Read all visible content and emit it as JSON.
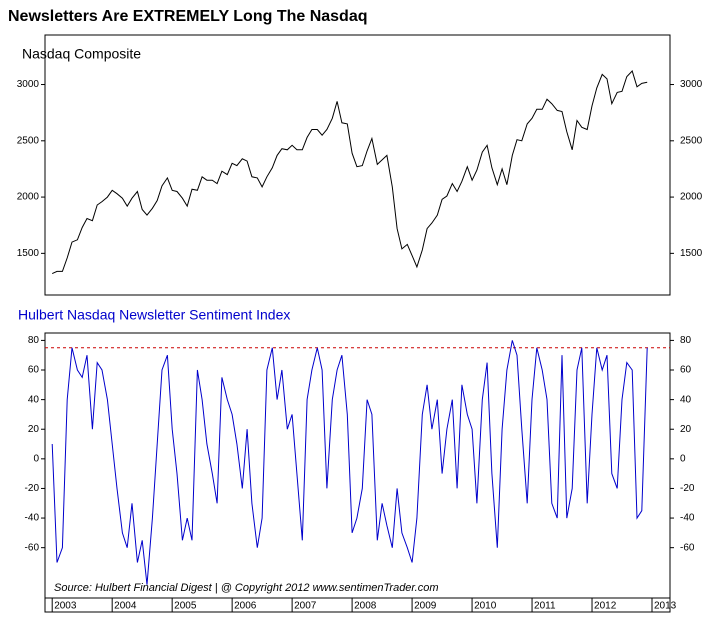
{
  "chart_data": [
    {
      "type": "line",
      "title": "Newsletters Are EXTREMELY Long The Nasdaq",
      "subtitle": "Nasdaq Composite",
      "x": [
        2003.0,
        2003.08,
        2003.17,
        2003.25,
        2003.33,
        2003.42,
        2003.5,
        2003.58,
        2003.67,
        2003.75,
        2003.83,
        2003.92,
        2004.0,
        2004.08,
        2004.17,
        2004.25,
        2004.33,
        2004.42,
        2004.5,
        2004.58,
        2004.67,
        2004.75,
        2004.83,
        2004.92,
        2005.0,
        2005.08,
        2005.17,
        2005.25,
        2005.33,
        2005.42,
        2005.5,
        2005.58,
        2005.67,
        2005.75,
        2005.83,
        2005.92,
        2006.0,
        2006.08,
        2006.17,
        2006.25,
        2006.33,
        2006.42,
        2006.5,
        2006.58,
        2006.67,
        2006.75,
        2006.83,
        2006.92,
        2007.0,
        2007.08,
        2007.17,
        2007.25,
        2007.33,
        2007.42,
        2007.5,
        2007.58,
        2007.67,
        2007.75,
        2007.83,
        2007.92,
        2008.0,
        2008.08,
        2008.17,
        2008.25,
        2008.33,
        2008.42,
        2008.5,
        2008.58,
        2008.67,
        2008.75,
        2008.83,
        2008.92,
        2009.0,
        2009.08,
        2009.17,
        2009.25,
        2009.33,
        2009.42,
        2009.5,
        2009.58,
        2009.67,
        2009.75,
        2009.83,
        2009.92,
        2010.0,
        2010.08,
        2010.17,
        2010.25,
        2010.33,
        2010.42,
        2010.5,
        2010.58,
        2010.67,
        2010.75,
        2010.83,
        2010.92,
        2011.0,
        2011.08,
        2011.17,
        2011.25,
        2011.33,
        2011.42,
        2011.5,
        2011.58,
        2011.67,
        2011.75,
        2011.83,
        2011.92,
        2012.0,
        2012.08,
        2012.17,
        2012.25,
        2012.33,
        2012.42,
        2012.5,
        2012.58,
        2012.67,
        2012.75,
        2012.83,
        2012.92
      ],
      "series": [
        {
          "name": "Nasdaq Composite",
          "color": "#000000",
          "values": [
            1320,
            1340,
            1340,
            1460,
            1600,
            1620,
            1730,
            1810,
            1790,
            1930,
            1960,
            2000,
            2060,
            2030,
            1990,
            1920,
            1990,
            2050,
            1890,
            1840,
            1900,
            1970,
            2100,
            2170,
            2060,
            2050,
            1990,
            1920,
            2070,
            2060,
            2180,
            2150,
            2150,
            2120,
            2230,
            2200,
            2300,
            2280,
            2340,
            2320,
            2180,
            2170,
            2090,
            2180,
            2260,
            2370,
            2430,
            2420,
            2460,
            2420,
            2420,
            2530,
            2600,
            2600,
            2550,
            2600,
            2700,
            2850,
            2660,
            2650,
            2390,
            2270,
            2280,
            2410,
            2520,
            2290,
            2330,
            2370,
            2090,
            1720,
            1540,
            1580,
            1480,
            1380,
            1530,
            1720,
            1770,
            1840,
            1980,
            2010,
            2120,
            2050,
            2140,
            2270,
            2150,
            2240,
            2400,
            2460,
            2260,
            2110,
            2250,
            2110,
            2370,
            2510,
            2500,
            2650,
            2700,
            2780,
            2780,
            2870,
            2830,
            2770,
            2760,
            2580,
            2420,
            2680,
            2620,
            2600,
            2810,
            2970,
            3090,
            3050,
            2830,
            2930,
            2940,
            3070,
            3120,
            2980,
            3010,
            3020
          ]
        }
      ],
      "xlim": [
        2002.88,
        2013.3
      ],
      "ylim": [
        1130,
        3440
      ],
      "yticks": [
        1500,
        2000,
        2500,
        3000
      ]
    },
    {
      "type": "line",
      "subtitle": "Hulbert Nasdaq Newsletter Sentiment Index",
      "annotation": "Source:  Hulbert Financial Digest  |  @ Copyright 2012  www.sentimenTrader.com",
      "x": [
        2003.0,
        2003.08,
        2003.17,
        2003.25,
        2003.33,
        2003.42,
        2003.5,
        2003.58,
        2003.67,
        2003.75,
        2003.83,
        2003.92,
        2004.0,
        2004.08,
        2004.17,
        2004.25,
        2004.33,
        2004.42,
        2004.5,
        2004.58,
        2004.67,
        2004.75,
        2004.83,
        2004.92,
        2005.0,
        2005.08,
        2005.17,
        2005.25,
        2005.33,
        2005.42,
        2005.5,
        2005.58,
        2005.67,
        2005.75,
        2005.83,
        2005.92,
        2006.0,
        2006.08,
        2006.17,
        2006.25,
        2006.33,
        2006.42,
        2006.5,
        2006.58,
        2006.67,
        2006.75,
        2006.83,
        2006.92,
        2007.0,
        2007.08,
        2007.17,
        2007.25,
        2007.33,
        2007.42,
        2007.5,
        2007.58,
        2007.67,
        2007.75,
        2007.83,
        2007.92,
        2008.0,
        2008.08,
        2008.17,
        2008.25,
        2008.33,
        2008.42,
        2008.5,
        2008.58,
        2008.67,
        2008.75,
        2008.83,
        2008.92,
        2009.0,
        2009.08,
        2009.17,
        2009.25,
        2009.33,
        2009.42,
        2009.5,
        2009.58,
        2009.67,
        2009.75,
        2009.83,
        2009.92,
        2010.0,
        2010.08,
        2010.17,
        2010.25,
        2010.33,
        2010.42,
        2010.5,
        2010.58,
        2010.67,
        2010.75,
        2010.83,
        2010.92,
        2011.0,
        2011.08,
        2011.17,
        2011.25,
        2011.33,
        2011.42,
        2011.5,
        2011.58,
        2011.67,
        2011.75,
        2011.83,
        2011.92,
        2012.0,
        2012.08,
        2012.17,
        2012.25,
        2012.33,
        2012.42,
        2012.5,
        2012.58,
        2012.67,
        2012.75,
        2012.83,
        2012.92
      ],
      "series": [
        {
          "name": "Hulbert Nasdaq Newsletter Sentiment Index",
          "color": "#0000cc",
          "values": [
            10,
            -70,
            -60,
            40,
            75,
            60,
            55,
            70,
            20,
            65,
            60,
            40,
            10,
            -20,
            -50,
            -60,
            -30,
            -70,
            -55,
            -85,
            -40,
            10,
            60,
            70,
            20,
            -10,
            -55,
            -40,
            -55,
            60,
            40,
            10,
            -10,
            -30,
            55,
            40,
            30,
            10,
            -20,
            20,
            -30,
            -60,
            -40,
            60,
            75,
            40,
            60,
            20,
            30,
            -10,
            -55,
            40,
            60,
            75,
            60,
            -20,
            40,
            60,
            70,
            30,
            -50,
            -40,
            -20,
            40,
            30,
            -55,
            -30,
            -45,
            -60,
            -20,
            -50,
            -60,
            -70,
            -40,
            30,
            50,
            20,
            40,
            -10,
            20,
            40,
            -20,
            50,
            30,
            20,
            -30,
            40,
            65,
            -10,
            -60,
            20,
            60,
            80,
            70,
            20,
            -30,
            40,
            75,
            60,
            40,
            -30,
            -40,
            70,
            -40,
            -20,
            60,
            75,
            -30,
            30,
            75,
            60,
            70,
            -10,
            -20,
            40,
            65,
            60,
            -40,
            -35,
            75
          ]
        }
      ],
      "threshold": 75,
      "threshold_color": "#cc0000",
      "xlim": [
        2002.88,
        2013.3
      ],
      "xticks": [
        2003,
        2004,
        2005,
        2006,
        2007,
        2008,
        2009,
        2010,
        2011,
        2012,
        2013
      ],
      "ylim": [
        -94,
        85
      ],
      "yticks": [
        -60,
        -40,
        -20,
        0,
        20,
        40,
        60,
        80
      ]
    }
  ]
}
